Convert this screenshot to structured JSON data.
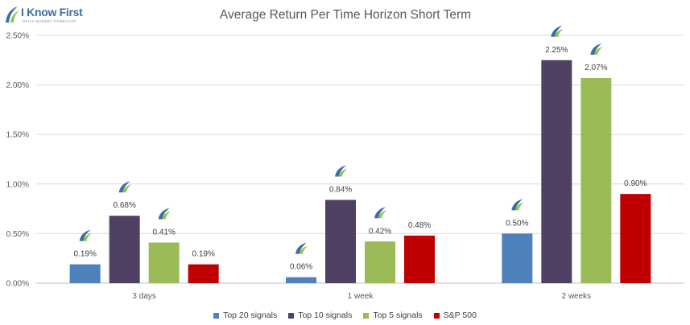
{
  "logo": {
    "name": "I Know First",
    "tagline": "DAILY MARKET FORECAST"
  },
  "chart_data": {
    "type": "bar",
    "title": "Average Return Per Time Horizon Short Term",
    "xlabel": "",
    "ylabel": "",
    "categories": [
      "3 days",
      "1 week",
      "2 weeks"
    ],
    "ylim": [
      0,
      0.025
    ],
    "yticks": [
      0,
      0.005,
      0.01,
      0.015,
      0.02,
      0.025
    ],
    "ytick_labels": [
      "0.00%",
      "0.50%",
      "1.00%",
      "1.50%",
      "2.00%",
      "2.50%"
    ],
    "grid": true,
    "legend_position": "bottom",
    "series": [
      {
        "name": "Top 20 signals",
        "color": "#4f81bd",
        "values": [
          0.0019,
          0.0006,
          0.005
        ],
        "labels": [
          "0.19%",
          "0.06%",
          "0.50%"
        ],
        "icon": true
      },
      {
        "name": "Top 10 signals",
        "color": "#504063",
        "values": [
          0.0068,
          0.0084,
          0.0225
        ],
        "labels": [
          "0.68%",
          "0.84%",
          "2.25%"
        ],
        "icon": true
      },
      {
        "name": "Top 5 signals",
        "color": "#9bbb59",
        "values": [
          0.0041,
          0.0042,
          0.0207
        ],
        "labels": [
          "0.41%",
          "0.42%",
          "2.07%"
        ],
        "icon": true
      },
      {
        "name": "S&P 500",
        "color": "#c00000",
        "values": [
          0.0019,
          0.0048,
          0.009
        ],
        "labels": [
          "0.19%",
          "0.48%",
          "0.90%"
        ],
        "icon": false
      }
    ]
  }
}
